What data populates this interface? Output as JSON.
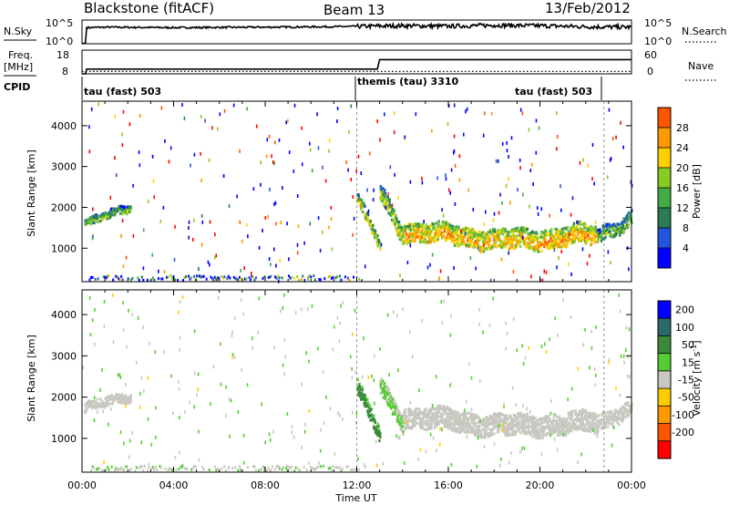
{
  "header": {
    "station": "Blackstone (fitACF)",
    "beam": "Beam 13",
    "date": "13/Feb/2012"
  },
  "chart_data": [
    {
      "type": "line",
      "panel": "noise",
      "left_label": "N.Sky",
      "right_label": "N.Search",
      "left_ticks": [
        "10^5",
        "10^0"
      ],
      "right_ticks": [
        "10^5",
        "10^0"
      ],
      "series": [
        {
          "name": "N.Sky",
          "style": "solid",
          "x_hours": [
            0.0,
            0.15,
            0.2,
            1,
            4,
            8,
            11,
            12.5,
            14,
            16,
            18,
            20,
            22,
            24
          ],
          "y_exp": [
            0.1,
            0.1,
            3.4,
            3.5,
            3.4,
            3.5,
            3.6,
            3.7,
            3.8,
            3.7,
            3.9,
            3.8,
            3.6,
            3.5
          ]
        },
        {
          "name": "N.Search",
          "style": "dotted",
          "x_hours": [],
          "y_exp": []
        }
      ],
      "ylim": [
        0,
        5
      ]
    },
    {
      "type": "line",
      "panel": "frequency",
      "left_label_top": "Freq.",
      "left_label_bottom": "[MHz]",
      "right_label": "Nave",
      "left_ticks": [
        "18",
        "8"
      ],
      "right_ticks": [
        "60",
        "0"
      ],
      "series": [
        {
          "name": "Freq.",
          "style": "solid",
          "x_hours": [
            0.0,
            0.15,
            0.2,
            12.9,
            13.0,
            24
          ],
          "y": [
            8,
            8,
            10.0,
            10.0,
            14.0,
            14.0
          ]
        },
        {
          "name": "Nave",
          "style": "dotted",
          "x_hours": [
            0,
            24
          ],
          "y": [
            9,
            9
          ]
        }
      ],
      "ylim": [
        8,
        18
      ]
    },
    {
      "type": "table",
      "panel": "cpid",
      "label": "CPID",
      "segments": [
        {
          "text": "tau (fast) 503",
          "start_hours": 0,
          "end_hours": 12
        },
        {
          "text": "themis (tau) 3310",
          "start_hours": 12,
          "end_hours": 22.8
        },
        {
          "text": "tau (fast) 503",
          "start_hours": 22.8,
          "end_hours": 24
        }
      ]
    },
    {
      "type": "heatmap",
      "panel": "power",
      "ylabel": "Slant Range [km]",
      "xlim": [
        0,
        24
      ],
      "ylim": [
        180,
        4600
      ],
      "yticks": [
        1000,
        2000,
        3000,
        4000
      ],
      "colorbar_label": "Power [dB]",
      "colorbar_ticks": [
        "4",
        "8",
        "12",
        "16",
        "20",
        "24",
        "28"
      ],
      "colorbar_range": [
        0,
        30
      ],
      "colors": [
        "#0000ff",
        "#2255dd",
        "#2a7a55",
        "#44aa44",
        "#88cc22",
        "#ffd000",
        "#ff9900",
        "#ff5500",
        "#ff0000"
      ],
      "regions": [
        {
          "t0": 0.1,
          "t1": 2.1,
          "base": [
            1550,
            2050
          ],
          "width": 190,
          "val": 15
        },
        {
          "t0": 12.0,
          "t1": 13.0,
          "base": [
            2200,
            1000
          ],
          "width": 300,
          "val": 17
        },
        {
          "t0": 13.0,
          "t1": 14.0,
          "base": [
            2300,
            1300
          ],
          "width": 420,
          "val": 17
        },
        {
          "t0": 14.0,
          "t1": 18.5,
          "base": [
            1400,
            1150
          ],
          "width": 480,
          "val": 21
        },
        {
          "t0": 18.5,
          "t1": 22.5,
          "base": [
            1150,
            1300
          ],
          "width": 480,
          "val": 21
        },
        {
          "t0": 22.5,
          "t1": 24.0,
          "base": [
            1300,
            1700
          ],
          "width": 360,
          "val": 14
        }
      ],
      "ground_scatter_km": 300
    },
    {
      "type": "heatmap",
      "panel": "velocity",
      "ylabel": "Slant Range [km]",
      "xlabel": "Time UT",
      "xlim": [
        0,
        24
      ],
      "ylim": [
        180,
        4600
      ],
      "xticks": [
        "00:00",
        "04:00",
        "08:00",
        "12:00",
        "16:00",
        "20:00",
        "00:00"
      ],
      "yticks": [
        1000,
        2000,
        3000,
        4000
      ],
      "colorbar_label": "Velocity [m s^-1]",
      "colorbar_ticks": [
        "200",
        "100",
        "50",
        "15",
        "-15",
        "-50",
        "-100",
        "-200"
      ],
      "colors": [
        "#0000ff",
        "#2a6a6a",
        "#3a8a3a",
        "#55cc33",
        "#c8c8c0",
        "#ffcc00",
        "#ff9900",
        "#ff5500",
        "#ff0000"
      ],
      "regions": [
        {
          "t0": 0.1,
          "t1": 2.1,
          "base": [
            1700,
            2050
          ],
          "width": 220,
          "val": 0
        },
        {
          "t0": 12.0,
          "t1": 13.0,
          "base": [
            2200,
            1000
          ],
          "width": 350,
          "val": 60
        },
        {
          "t0": 13.0,
          "t1": 14.0,
          "base": [
            2200,
            1350
          ],
          "width": 420,
          "val": 20
        },
        {
          "t0": 14.0,
          "t1": 18.5,
          "base": [
            1500,
            1250
          ],
          "width": 500,
          "val": 0
        },
        {
          "t0": 18.5,
          "t1": 22.5,
          "base": [
            1250,
            1350
          ],
          "width": 500,
          "val": 0
        },
        {
          "t0": 22.5,
          "t1": 24.0,
          "base": [
            1350,
            1750
          ],
          "width": 380,
          "val": 0
        }
      ],
      "ground_scatter_km": 300
    }
  ]
}
